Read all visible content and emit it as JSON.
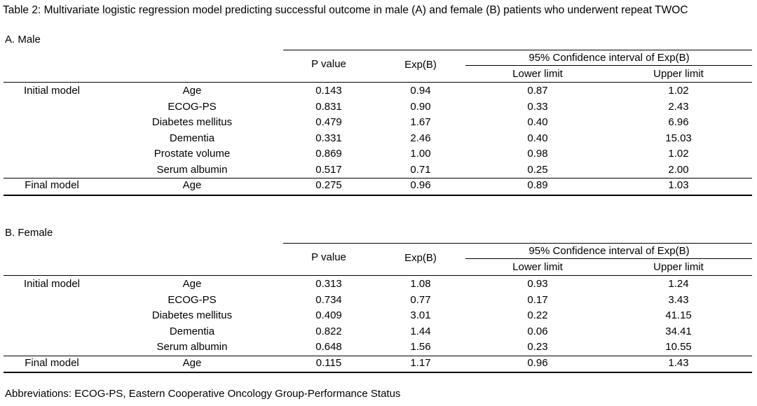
{
  "title": "Table 2: Multivariate logistic regression model predicting successful outcome in male (A) and female (B) patients who underwent repeat TWOC",
  "headers": {
    "p_value": "P value",
    "exp_b": "Exp(B)",
    "ci": "95% Confidence interval of Exp(B)",
    "lower": "Lower limit",
    "upper": "Upper limit"
  },
  "male": {
    "label": "A. Male",
    "initial_label": "Initial model",
    "final_label": "Final model",
    "initial_rows": [
      {
        "variable": "Age",
        "p": "0.143",
        "exp": "0.94",
        "lower": "0.87",
        "upper": "1.02"
      },
      {
        "variable": "ECOG-PS",
        "p": "0.831",
        "exp": "0.90",
        "lower": "0.33",
        "upper": "2.43"
      },
      {
        "variable": "Diabetes mellitus",
        "p": "0.479",
        "exp": "1.67",
        "lower": "0.40",
        "upper": "6.96"
      },
      {
        "variable": "Dementia",
        "p": "0.331",
        "exp": "2.46",
        "lower": "0.40",
        "upper": "15.03"
      },
      {
        "variable": "Prostate volume",
        "p": "0.869",
        "exp": "1.00",
        "lower": "0.98",
        "upper": "1.02"
      },
      {
        "variable": "Serum albumin",
        "p": "0.517",
        "exp": "0.71",
        "lower": "0.25",
        "upper": "2.00"
      }
    ],
    "final_rows": [
      {
        "variable": "Age",
        "p": "0.275",
        "exp": "0.96",
        "lower": "0.89",
        "upper": "1.03"
      }
    ]
  },
  "female": {
    "label": "B. Female",
    "initial_label": "Initial model",
    "final_label": "Final model",
    "initial_rows": [
      {
        "variable": "Age",
        "p": "0.313",
        "exp": "1.08",
        "lower": "0.93",
        "upper": "1.24"
      },
      {
        "variable": "ECOG-PS",
        "p": "0.734",
        "exp": "0.77",
        "lower": "0.17",
        "upper": "3.43"
      },
      {
        "variable": "Diabetes mellitus",
        "p": "0.409",
        "exp": "3.01",
        "lower": "0.22",
        "upper": "41.15"
      },
      {
        "variable": "Dementia",
        "p": "0.822",
        "exp": "1.44",
        "lower": "0.06",
        "upper": "34.41"
      },
      {
        "variable": "Serum albumin",
        "p": "0.648",
        "exp": "1.56",
        "lower": "0.23",
        "upper": "10.55"
      }
    ],
    "final_rows": [
      {
        "variable": "Age",
        "p": "0.115",
        "exp": "1.17",
        "lower": "0.96",
        "upper": "1.43"
      }
    ]
  },
  "footnote": "Abbreviations: ECOG-PS, Eastern Cooperative Oncology Group-Performance Status"
}
